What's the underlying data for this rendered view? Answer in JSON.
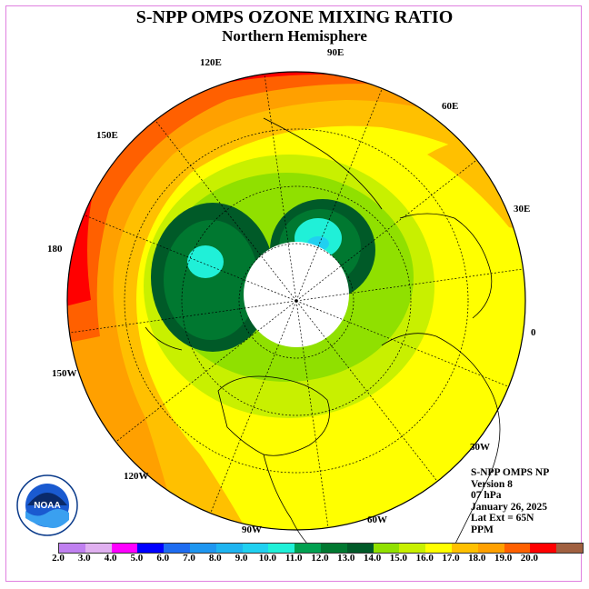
{
  "title": "S-NPP OMPS OZONE MIXING RATIO",
  "subtitle": "Northern Hemisphere",
  "longitude_labels": {
    "e90": "90E",
    "e60": "60E",
    "e30": "30E",
    "zero": "0",
    "w30": "30W",
    "w60": "60W",
    "w90": "90W",
    "w120": "120W",
    "w150": "150W",
    "d180": "180",
    "e150": "150E",
    "e120": "120E"
  },
  "info": {
    "instrument": "S-NPP OMPS NP",
    "version": "Version 8",
    "pressure": "07 hPa",
    "date": "January 26, 2025",
    "lat_ext": "Lat Ext = 65N",
    "units": "PPM"
  },
  "logo": {
    "text": "NOAA"
  },
  "colorbar": {
    "ticks": [
      "2.0",
      "3.0",
      "4.0",
      "5.0",
      "6.0",
      "7.0",
      "8.0",
      "9.0",
      "10.0",
      "11.0",
      "12.0",
      "13.0",
      "14.0",
      "15.0",
      "16.0",
      "17.0",
      "18.0",
      "19.0",
      "20.0"
    ],
    "colors": [
      "#c080f0",
      "#e0b0f0",
      "#ff00ff",
      "#0000ff",
      "#1e6cf0",
      "#1e96f0",
      "#1eb4f0",
      "#20d0f0",
      "#20f0d8",
      "#00a050",
      "#007830",
      "#005a28",
      "#90e000",
      "#c8f000",
      "#ffff00",
      "#ffc000",
      "#ffa000",
      "#ff6000",
      "#ff0000",
      "#a06040"
    ]
  }
}
